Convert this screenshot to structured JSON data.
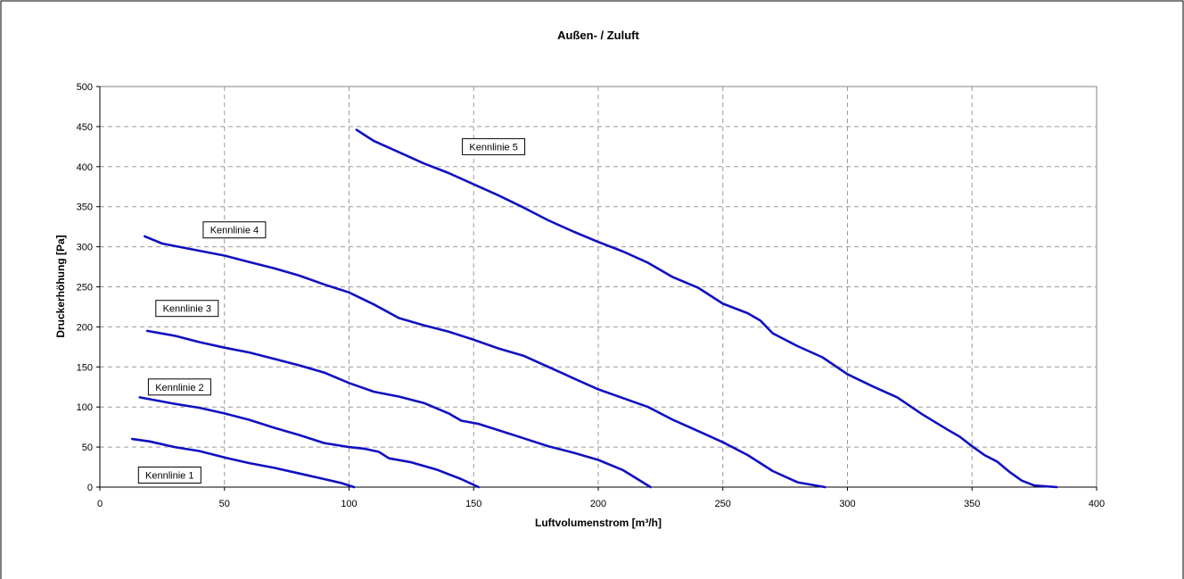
{
  "chart_data": {
    "type": "line",
    "title": "Außen- / Zuluft",
    "xlabel": "Luftvolumenstrom [m³/h]",
    "ylabel": "Druckerhöhung [Pa]",
    "xlim": [
      0,
      400
    ],
    "ylim": [
      0,
      500
    ],
    "x_ticks": [
      "0",
      "50",
      "100",
      "150",
      "200",
      "250",
      "300",
      "350",
      "400"
    ],
    "y_ticks": [
      "0",
      "50",
      "100",
      "150",
      "200",
      "250",
      "300",
      "350",
      "400",
      "450",
      "500"
    ],
    "grid": true,
    "legend": "none",
    "line_color": "#1010c0",
    "series": [
      {
        "name": "Kennlinie 1",
        "points": [
          [
            13,
            60
          ],
          [
            20,
            57
          ],
          [
            30,
            50
          ],
          [
            40,
            45
          ],
          [
            50,
            37
          ],
          [
            60,
            30
          ],
          [
            70,
            24
          ],
          [
            80,
            17
          ],
          [
            90,
            10
          ],
          [
            97,
            5
          ],
          [
            102,
            0
          ]
        ]
      },
      {
        "name": "Kennlinie 2",
        "points": [
          [
            16,
            112
          ],
          [
            30,
            104
          ],
          [
            40,
            99
          ],
          [
            50,
            92
          ],
          [
            60,
            84
          ],
          [
            70,
            74
          ],
          [
            80,
            65
          ],
          [
            90,
            55
          ],
          [
            100,
            50
          ],
          [
            106,
            48
          ],
          [
            112,
            44
          ],
          [
            116,
            36
          ],
          [
            125,
            31
          ],
          [
            135,
            22
          ],
          [
            145,
            10
          ],
          [
            152,
            0
          ]
        ]
      },
      {
        "name": "Kennlinie 3",
        "points": [
          [
            19,
            195
          ],
          [
            30,
            189
          ],
          [
            40,
            181
          ],
          [
            50,
            174
          ],
          [
            60,
            168
          ],
          [
            70,
            160
          ],
          [
            80,
            152
          ],
          [
            90,
            143
          ],
          [
            100,
            130
          ],
          [
            110,
            119
          ],
          [
            120,
            113
          ],
          [
            130,
            105
          ],
          [
            140,
            92
          ],
          [
            145,
            83
          ],
          [
            152,
            79
          ],
          [
            160,
            71
          ],
          [
            170,
            61
          ],
          [
            180,
            51
          ],
          [
            190,
            43
          ],
          [
            200,
            34
          ],
          [
            210,
            21
          ],
          [
            221,
            0
          ]
        ]
      },
      {
        "name": "Kennlinie 4",
        "points": [
          [
            18,
            313
          ],
          [
            25,
            304
          ],
          [
            40,
            295
          ],
          [
            50,
            289
          ],
          [
            60,
            281
          ],
          [
            70,
            273
          ],
          [
            80,
            264
          ],
          [
            90,
            253
          ],
          [
            100,
            243
          ],
          [
            110,
            228
          ],
          [
            120,
            211
          ],
          [
            130,
            202
          ],
          [
            140,
            194
          ],
          [
            150,
            184
          ],
          [
            160,
            173
          ],
          [
            170,
            164
          ],
          [
            180,
            150
          ],
          [
            190,
            136
          ],
          [
            200,
            122
          ],
          [
            210,
            111
          ],
          [
            220,
            100
          ],
          [
            230,
            84
          ],
          [
            240,
            70
          ],
          [
            250,
            56
          ],
          [
            260,
            40
          ],
          [
            270,
            20
          ],
          [
            280,
            6
          ],
          [
            291,
            0
          ]
        ]
      },
      {
        "name": "Kennlinie 5",
        "points": [
          [
            103,
            446
          ],
          [
            110,
            432
          ],
          [
            120,
            418
          ],
          [
            130,
            404
          ],
          [
            140,
            392
          ],
          [
            150,
            378
          ],
          [
            160,
            364
          ],
          [
            170,
            349
          ],
          [
            180,
            333
          ],
          [
            190,
            319
          ],
          [
            200,
            306
          ],
          [
            210,
            294
          ],
          [
            220,
            280
          ],
          [
            230,
            262
          ],
          [
            240,
            249
          ],
          [
            250,
            229
          ],
          [
            260,
            217
          ],
          [
            265,
            208
          ],
          [
            270,
            192
          ],
          [
            280,
            176
          ],
          [
            290,
            162
          ],
          [
            300,
            141
          ],
          [
            310,
            126
          ],
          [
            320,
            112
          ],
          [
            330,
            91
          ],
          [
            340,
            72
          ],
          [
            345,
            63
          ],
          [
            350,
            51
          ],
          [
            355,
            40
          ],
          [
            360,
            32
          ],
          [
            365,
            19
          ],
          [
            370,
            8
          ],
          [
            375,
            2
          ],
          [
            384,
            0
          ]
        ]
      }
    ],
    "annotations": [
      {
        "text": "Kennlinie 1",
        "x": 28,
        "y": 15
      },
      {
        "text": "Kennlinie 2",
        "x": 32,
        "y": 125
      },
      {
        "text": "Kennlinie 3",
        "x": 35,
        "y": 223
      },
      {
        "text": "Kennlinie 4",
        "x": 54,
        "y": 321
      },
      {
        "text": "Kennlinie 5",
        "x": 158,
        "y": 425
      }
    ]
  }
}
